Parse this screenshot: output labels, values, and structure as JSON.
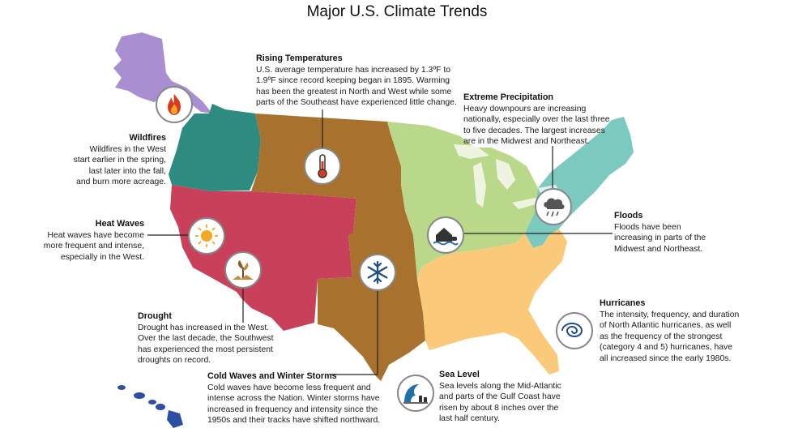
{
  "title": "Major U.S. Climate Trends",
  "colors": {
    "alaska": "#a98fd1",
    "northwest": "#2e8b7f",
    "southwest": "#c9405a",
    "central": "#a8722e",
    "midwest": "#b9d88a",
    "northeast": "#7cc9bf",
    "southeast": "#fbc97a",
    "hawaii": "#2c4fa3"
  },
  "callouts": {
    "rising_temperatures": {
      "title": "Rising Temperatures",
      "lines": [
        "U.S. average temperature has increased by 1.3ºF to",
        "1.9ºF since record keeping began in 1895. Warming",
        "has been the greatest in North and West while some",
        "parts of the Southeast have experienced little change."
      ]
    },
    "extreme_precipitation": {
      "title": "Extreme Precipitation",
      "lines": [
        "Heavy downpours are increasing",
        "nationally, especially over the last three",
        "to five decades. The largest increases",
        "are in the Midwest and Northeast."
      ]
    },
    "wildfires": {
      "title": "Wildfires",
      "lines": [
        "Wildfires in the West",
        "start earlier in the spring,",
        "last later into the fall,",
        "and burn more acreage."
      ]
    },
    "heat_waves": {
      "title": "Heat Waves",
      "lines": [
        "Heat waves have become",
        "more frequent and intense,",
        "especially in the West."
      ]
    },
    "floods": {
      "title": "Floods",
      "lines": [
        "Floods have been",
        "increasing in parts of the",
        "Midwest and Northeast."
      ]
    },
    "drought": {
      "title": "Drought",
      "lines": [
        "Drought has increased in the West.",
        "Over the last decade, the Southwest",
        "has experienced the most persistent",
        "droughts on record."
      ]
    },
    "hurricanes": {
      "title": "Hurricanes",
      "lines": [
        "The intensity, frequency, and duration",
        "of North Atlantic hurricanes, as well",
        "as the frequency of the strongest",
        "(category 4 and 5) hurricanes, have",
        "all increased since the early 1980s."
      ]
    },
    "cold_waves": {
      "title": "Cold Waves and Winter Storms",
      "lines": [
        "Cold waves have become less frequent and",
        "intense across the Nation. Winter storms have",
        "increased in frequency and intensity since the",
        "1950s and their tracks have shifted northward."
      ]
    },
    "sea_level": {
      "title": "Sea Level",
      "lines": [
        "Sea levels along the Mid-Atlantic",
        "and parts of the Gulf Coast have",
        "risen by about 8 inches over the",
        "last half century."
      ]
    }
  }
}
